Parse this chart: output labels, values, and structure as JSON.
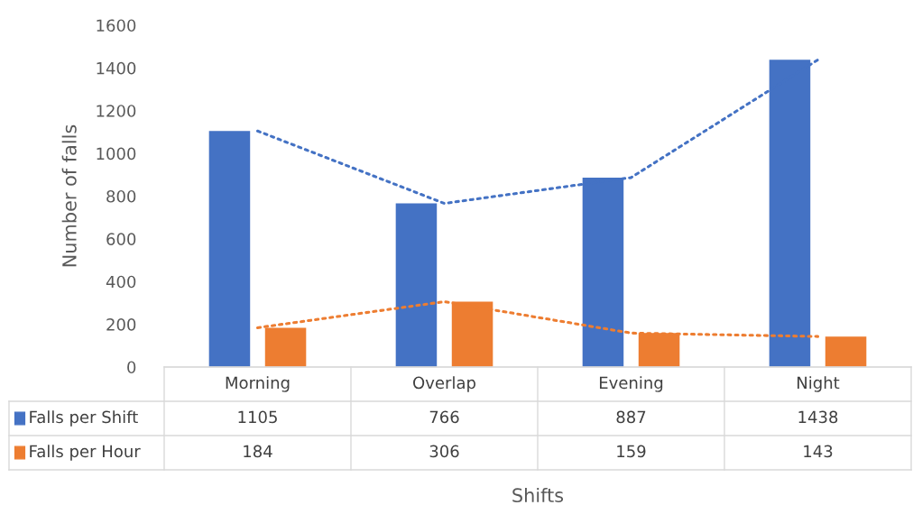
{
  "chart_data": {
    "type": "bar",
    "ylabel": "Number of falls",
    "annotations": [
      "Shifts"
    ],
    "categories": [
      "Morning",
      "Overlap",
      "Evening",
      "Night"
    ],
    "series": [
      {
        "name": "Falls per Shift",
        "color": "#4472c4",
        "values": [
          1105,
          766,
          887,
          1438
        ],
        "value_labels": [
          "1105",
          "766",
          "887",
          "1438"
        ]
      },
      {
        "name": "Falls per Hour",
        "color": "#ed7d31",
        "values": [
          184,
          306,
          159,
          143
        ],
        "value_labels": [
          "184",
          "306",
          "159",
          "143"
        ]
      },
      {
        "type": "line",
        "color": "#4472c4",
        "line_style": "dotted",
        "values": [
          1105,
          766,
          887,
          1438
        ]
      },
      {
        "type": "line",
        "color": "#ed7d31",
        "line_style": "dotted",
        "values": [
          184,
          306,
          159,
          143
        ]
      }
    ],
    "ylim": [
      0,
      1600
    ],
    "yticks": [
      0,
      200,
      400,
      600,
      800,
      1000,
      1200,
      1400,
      1600
    ],
    "grid": false,
    "legend": "bottom"
  }
}
